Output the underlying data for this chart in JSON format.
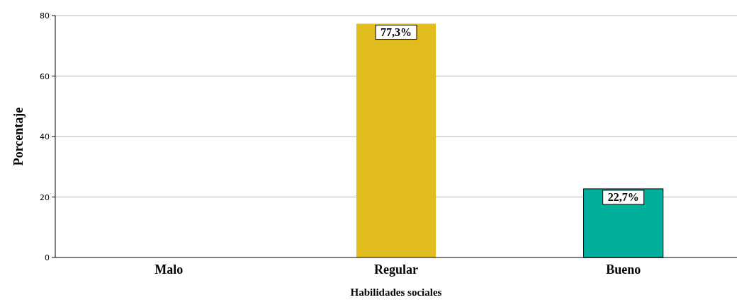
{
  "chart_data": {
    "type": "bar",
    "xlabel": "Habilidades sociales",
    "ylabel": "Porcentaje",
    "categories": [
      "Malo",
      "Regular",
      "Bueno"
    ],
    "values": [
      0,
      77.3,
      22.7
    ],
    "colors": [
      "#e0bc1f",
      "#e0bc1f",
      "#00b09c"
    ],
    "value_labels": [
      null,
      "77,3%",
      "22,7%"
    ],
    "ylim": [
      0,
      80
    ],
    "yticks": [
      0,
      20,
      40,
      60,
      80
    ],
    "grid": "y"
  }
}
